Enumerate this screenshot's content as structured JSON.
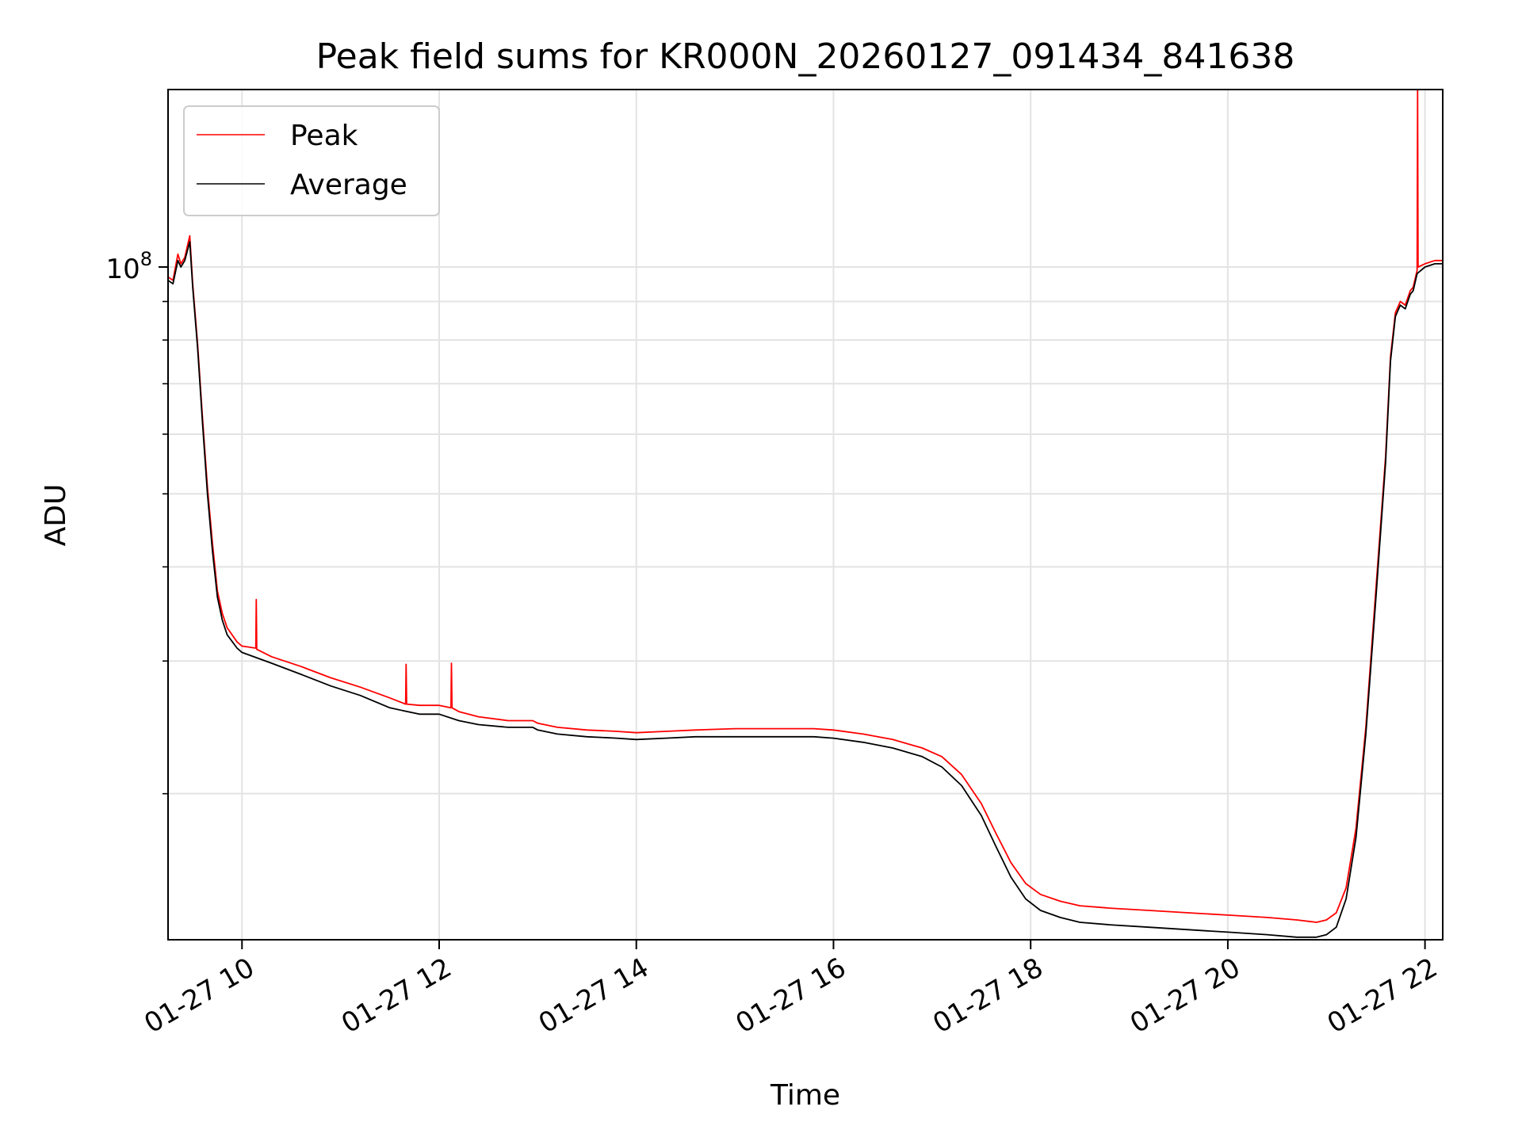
{
  "chart_data": {
    "type": "line",
    "title": "Peak field sums for KR000N_20260127_091434_841638",
    "xlabel": "Time",
    "ylabel": "ADU",
    "yscale": "log",
    "grid": true,
    "legend_position": "top-left",
    "x_unit": "hours since 01-27 00:00",
    "xlim": [
      9.25,
      22.18
    ],
    "ylim": [
      12800000.0,
      172000000.0
    ],
    "x_ticks": [
      {
        "value": 10,
        "label": "01-27 10"
      },
      {
        "value": 12,
        "label": "01-27 12"
      },
      {
        "value": 14,
        "label": "01-27 14"
      },
      {
        "value": 16,
        "label": "01-27 16"
      },
      {
        "value": 18,
        "label": "01-27 18"
      },
      {
        "value": 20,
        "label": "01-27 20"
      },
      {
        "value": 22,
        "label": "01-27 22"
      }
    ],
    "y_ticks": [
      {
        "value": 100000000.0,
        "base": "10",
        "exp": "8"
      }
    ],
    "y_minor_ticks": [
      20000000.0,
      30000000.0,
      40000000.0,
      50000000.0,
      60000000.0,
      70000000.0,
      80000000.0,
      90000000.0
    ],
    "series": [
      {
        "name": "Average",
        "color": "#000000",
        "x": [
          9.25,
          9.3,
          9.35,
          9.38,
          9.42,
          9.47,
          9.5,
          9.55,
          9.6,
          9.65,
          9.7,
          9.75,
          9.8,
          9.85,
          9.95,
          10.0,
          10.3,
          10.6,
          10.9,
          11.2,
          11.5,
          11.8,
          12.0,
          12.2,
          12.4,
          12.7,
          12.95,
          13.0,
          13.2,
          13.5,
          13.8,
          14.0,
          14.3,
          14.6,
          15.0,
          15.4,
          15.8,
          16.0,
          16.3,
          16.6,
          16.9,
          17.1,
          17.3,
          17.5,
          17.65,
          17.8,
          17.95,
          18.1,
          18.3,
          18.5,
          18.8,
          19.2,
          19.6,
          20.0,
          20.4,
          20.7,
          20.9,
          21.0,
          21.1,
          21.2,
          21.3,
          21.4,
          21.5,
          21.6,
          21.65,
          21.7,
          21.75,
          21.8,
          21.85,
          21.88,
          21.92,
          22.0,
          22.1,
          22.18
        ],
        "y": [
          96000000.0,
          95000000.0,
          102000000.0,
          100000000.0,
          102000000.0,
          108000000.0,
          94000000.0,
          78000000.0,
          62000000.0,
          50000000.0,
          42000000.0,
          36500000.0,
          34000000.0,
          32500000.0,
          31200000.0,
          30800000.0,
          29800000.0,
          28800000.0,
          27800000.0,
          27000000.0,
          26000000.0,
          25500000.0,
          25500000.0,
          25000000.0,
          24700000.0,
          24500000.0,
          24500000.0,
          24300000.0,
          24000000.0,
          23800000.0,
          23700000.0,
          23600000.0,
          23700000.0,
          23800000.0,
          23800000.0,
          23800000.0,
          23800000.0,
          23700000.0,
          23400000.0,
          23000000.0,
          22400000.0,
          21700000.0,
          20500000.0,
          18700000.0,
          17000000.0,
          15500000.0,
          14500000.0,
          14000000.0,
          13700000.0,
          13500000.0,
          13400000.0,
          13300000.0,
          13200000.0,
          13100000.0,
          13000000.0,
          12900000.0,
          12900000.0,
          13000000.0,
          13300000.0,
          14500000.0,
          17500000.0,
          24000000.0,
          36000000.0,
          55000000.0,
          75000000.0,
          86000000.0,
          89000000.0,
          88000000.0,
          92000000.0,
          93000000.0,
          98000000.0,
          100000000.0,
          101000000.0,
          101000000.0
        ]
      },
      {
        "name": "Peak",
        "color": "#ff0000",
        "x": [
          9.25,
          9.3,
          9.35,
          9.38,
          9.42,
          9.47,
          9.5,
          9.55,
          9.6,
          9.65,
          9.7,
          9.75,
          9.8,
          9.85,
          9.95,
          10.0,
          10.14,
          10.145,
          10.15,
          10.3,
          10.6,
          10.9,
          11.2,
          11.5,
          11.66,
          11.665,
          11.67,
          11.8,
          12.0,
          12.12,
          12.125,
          12.13,
          12.2,
          12.4,
          12.7,
          12.95,
          13.0,
          13.2,
          13.5,
          13.8,
          14.0,
          14.3,
          14.6,
          15.0,
          15.4,
          15.8,
          16.0,
          16.3,
          16.6,
          16.9,
          17.1,
          17.3,
          17.5,
          17.65,
          17.8,
          17.95,
          18.1,
          18.3,
          18.5,
          18.8,
          19.2,
          19.6,
          20.0,
          20.4,
          20.7,
          20.9,
          21.0,
          21.1,
          21.2,
          21.3,
          21.4,
          21.5,
          21.6,
          21.65,
          21.7,
          21.75,
          21.8,
          21.85,
          21.88,
          21.92,
          21.925,
          21.93,
          22.0,
          22.1,
          22.18
        ],
        "y": [
          97000000.0,
          96000000.0,
          104000000.0,
          101000000.0,
          103000000.0,
          110000000.0,
          95000000.0,
          79000000.0,
          63000000.0,
          51000000.0,
          43000000.0,
          37200000.0,
          34700000.0,
          33200000.0,
          31800000.0,
          31400000.0,
          31200000.0,
          36200000.0,
          31100000.0,
          30400000.0,
          29500000.0,
          28500000.0,
          27700000.0,
          26800000.0,
          26300000.0,
          29700000.0,
          26300000.0,
          26200000.0,
          26200000.0,
          26000000.0,
          29800000.0,
          26000000.0,
          25700000.0,
          25300000.0,
          25000000.0,
          25000000.0,
          24800000.0,
          24500000.0,
          24300000.0,
          24200000.0,
          24100000.0,
          24200000.0,
          24300000.0,
          24400000.0,
          24400000.0,
          24400000.0,
          24300000.0,
          24000000.0,
          23600000.0,
          23000000.0,
          22400000.0,
          21200000.0,
          19400000.0,
          17700000.0,
          16200000.0,
          15200000.0,
          14700000.0,
          14400000.0,
          14200000.0,
          14100000.0,
          14000000.0,
          13900000.0,
          13800000.0,
          13700000.0,
          13600000.0,
          13500000.0,
          13600000.0,
          13900000.0,
          15000000.0,
          18000000.0,
          24500000.0,
          37000000.0,
          56000000.0,
          76000000.0,
          87000000.0,
          90000000.0,
          89000000.0,
          93000000.0,
          94000000.0,
          99000000.0,
          172000000.0,
          100000000.0,
          101000000.0,
          102000000.0,
          102000000.0
        ]
      }
    ]
  }
}
